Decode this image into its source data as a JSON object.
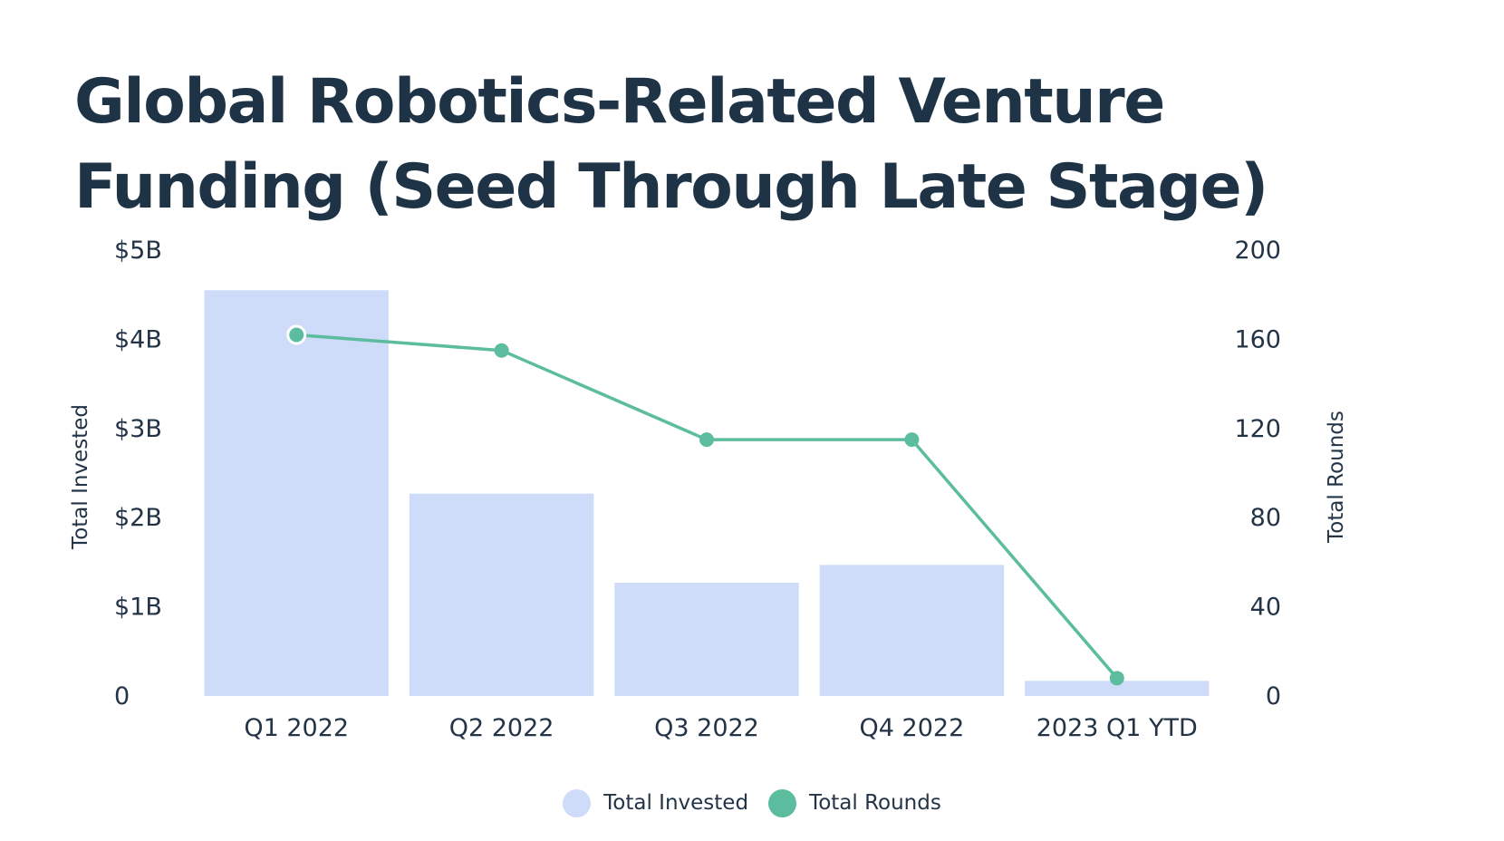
{
  "chart_data": {
    "type": "bar",
    "title": "Global Robotics-Related Venture Funding (Seed Through Late Stage)",
    "categories": [
      "Q1 2022",
      "Q2 2022",
      "Q3 2022",
      "Q4 2022",
      "2023 Q1 YTD"
    ],
    "series": [
      {
        "name": "Total Invested",
        "type": "bar",
        "axis": "left",
        "color": "#cfdcf9",
        "values": [
          4.55,
          2.27,
          1.27,
          1.47,
          0.17
        ]
      },
      {
        "name": "Total Rounds",
        "type": "line",
        "axis": "right",
        "color": "#5bbd9e",
        "values": [
          162,
          155,
          115,
          115,
          8
        ]
      }
    ],
    "ylabel": "Total Invested",
    "ylim": [
      0,
      5
    ],
    "yticks": [
      "0",
      "$1B",
      "$2B",
      "$3B",
      "$4B",
      "$5B"
    ],
    "y2label": "Total Rounds",
    "y2lim": [
      0,
      200
    ],
    "y2ticks": [
      "0",
      "40",
      "80",
      "120",
      "160",
      "200"
    ],
    "grid": false,
    "legend_position": "bottom-center"
  }
}
